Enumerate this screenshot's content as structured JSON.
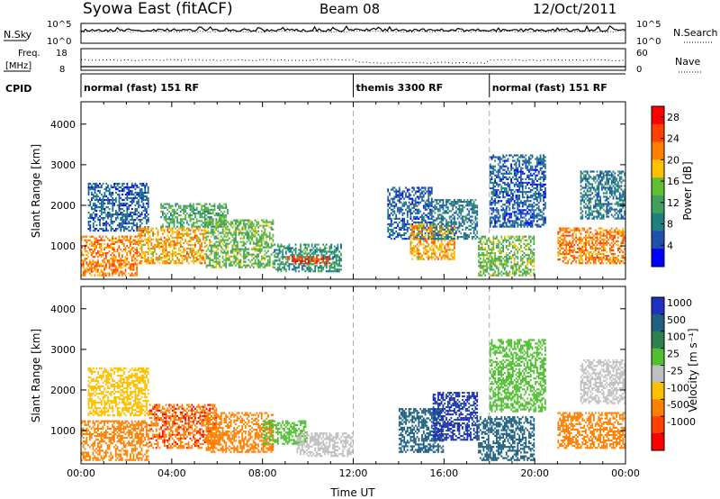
{
  "header": {
    "title": "Syowa East (fitACF)",
    "beam": "Beam 08",
    "date": "12/Oct/2011"
  },
  "noise_panel": {
    "left_label": "N.Sky",
    "right_label": "N.Search",
    "tick_top": "10^5",
    "tick_bottom": "10^0",
    "right_tick_top": "10^5",
    "right_tick_bottom": "10^0"
  },
  "freq_panel": {
    "label_line1": "Freq.",
    "label_line2": "[MHz]",
    "tick_top": "18",
    "tick_bottom": "8",
    "right_label": "Nave",
    "right_tick_top": "60",
    "right_tick_bottom": "0"
  },
  "cpid_panel": {
    "label": "CPID",
    "modes": [
      {
        "name": "normal (fast) 151 RF",
        "start_hour": 0,
        "end_hour": 12
      },
      {
        "name": "themis 3300 RF",
        "start_hour": 12,
        "end_hour": 18
      },
      {
        "name": "normal (fast) 151 RF",
        "start_hour": 18,
        "end_hour": 24
      }
    ]
  },
  "colors": {
    "power_scale": [
      "#0000ff",
      "#1f4fb0",
      "#1f8080",
      "#3fa060",
      "#60c030",
      "#ffc000",
      "#ff8000",
      "#ff4000",
      "#ff0000"
    ],
    "velocity_scale": [
      "#2030c0",
      "#1f6080",
      "#2f8050",
      "#50c030",
      "#c0c0c0",
      "#ffc000",
      "#ff8000",
      "#ff4000",
      "#ff0000"
    ]
  },
  "chart_data": [
    {
      "type": "heatmap",
      "name": "power",
      "xlabel": "",
      "ylabel": "Slant Range [km]",
      "xlim": [
        0,
        24
      ],
      "ylim": [
        180,
        4550
      ],
      "yticks": [
        "1000",
        "2000",
        "3000",
        "4000"
      ],
      "ytick_values": [
        1000,
        2000,
        3000,
        4000
      ],
      "colorbar_label": "Power [dB]",
      "colorbar_ticks": [
        "4",
        "8",
        "12",
        "16",
        "20",
        "24",
        "28"
      ],
      "colorbar_range": [
        0,
        30
      ],
      "regions": [
        {
          "x": [
            0.0,
            2.5
          ],
          "y": [
            300,
            1300
          ],
          "value": 22
        },
        {
          "x": [
            0.3,
            3.0
          ],
          "y": [
            1400,
            2600
          ],
          "value": 6
        },
        {
          "x": [
            2.5,
            5.5
          ],
          "y": [
            600,
            1500
          ],
          "value": 20
        },
        {
          "x": [
            3.5,
            6.5
          ],
          "y": [
            1500,
            2100
          ],
          "value": 12
        },
        {
          "x": [
            5.5,
            8.5
          ],
          "y": [
            500,
            1700
          ],
          "value": 14
        },
        {
          "x": [
            8.5,
            11.5
          ],
          "y": [
            400,
            1100
          ],
          "value": 10
        },
        {
          "x": [
            9.0,
            11.0
          ],
          "y": [
            600,
            800
          ],
          "value": 26
        },
        {
          "x": [
            13.5,
            15.5
          ],
          "y": [
            1200,
            2500
          ],
          "value": 6
        },
        {
          "x": [
            14.5,
            16.5
          ],
          "y": [
            700,
            1600
          ],
          "value": 20
        },
        {
          "x": [
            15.5,
            17.5
          ],
          "y": [
            1200,
            2200
          ],
          "value": 8
        },
        {
          "x": [
            17.5,
            20.0
          ],
          "y": [
            300,
            1300
          ],
          "value": 14
        },
        {
          "x": [
            18.0,
            20.5
          ],
          "y": [
            1500,
            3300
          ],
          "value": 6
        },
        {
          "x": [
            21.0,
            24.0
          ],
          "y": [
            600,
            1500
          ],
          "value": 22
        },
        {
          "x": [
            22.0,
            24.0
          ],
          "y": [
            1700,
            2900
          ],
          "value": 8
        }
      ]
    },
    {
      "type": "heatmap",
      "name": "velocity",
      "xlabel": "Time UT",
      "ylabel": "Slant Range [km]",
      "xlim": [
        0,
        24
      ],
      "ylim": [
        180,
        4550
      ],
      "xticks": [
        "00:00",
        "04:00",
        "08:00",
        "12:00",
        "16:00",
        "20:00",
        "00:00"
      ],
      "xtick_values": [
        0,
        4,
        8,
        12,
        16,
        20,
        24
      ],
      "yticks": [
        "1000",
        "2000",
        "3000",
        "4000"
      ],
      "ytick_values": [
        1000,
        2000,
        3000,
        4000
      ],
      "colorbar_label": "Velocity [m s⁻¹]",
      "colorbar_ticks": [
        "1000",
        "500",
        "100",
        "25",
        "-25",
        "-100",
        "-500",
        "-1000"
      ],
      "regions": [
        {
          "x": [
            0.0,
            3.0
          ],
          "y": [
            300,
            1300
          ],
          "value": -300
        },
        {
          "x": [
            0.3,
            3.0
          ],
          "y": [
            1400,
            2600
          ],
          "value": -50
        },
        {
          "x": [
            3.0,
            6.0
          ],
          "y": [
            600,
            1700
          ],
          "value": -450
        },
        {
          "x": [
            5.5,
            8.5
          ],
          "y": [
            500,
            1500
          ],
          "value": -200
        },
        {
          "x": [
            8.0,
            10.0
          ],
          "y": [
            700,
            1300
          ],
          "value": 60
        },
        {
          "x": [
            9.5,
            12.0
          ],
          "y": [
            400,
            1000
          ],
          "value": 0
        },
        {
          "x": [
            14.0,
            16.0
          ],
          "y": [
            500,
            1600
          ],
          "value": 300
        },
        {
          "x": [
            15.5,
            17.5
          ],
          "y": [
            800,
            2000
          ],
          "value": 600
        },
        {
          "x": [
            17.5,
            20.0
          ],
          "y": [
            300,
            1400
          ],
          "value": 300
        },
        {
          "x": [
            18.0,
            20.5
          ],
          "y": [
            1500,
            3300
          ],
          "value": 60
        },
        {
          "x": [
            21.0,
            24.0
          ],
          "y": [
            600,
            1500
          ],
          "value": -300
        },
        {
          "x": [
            22.0,
            24.0
          ],
          "y": [
            1700,
            2800
          ],
          "value": 0
        }
      ]
    }
  ]
}
